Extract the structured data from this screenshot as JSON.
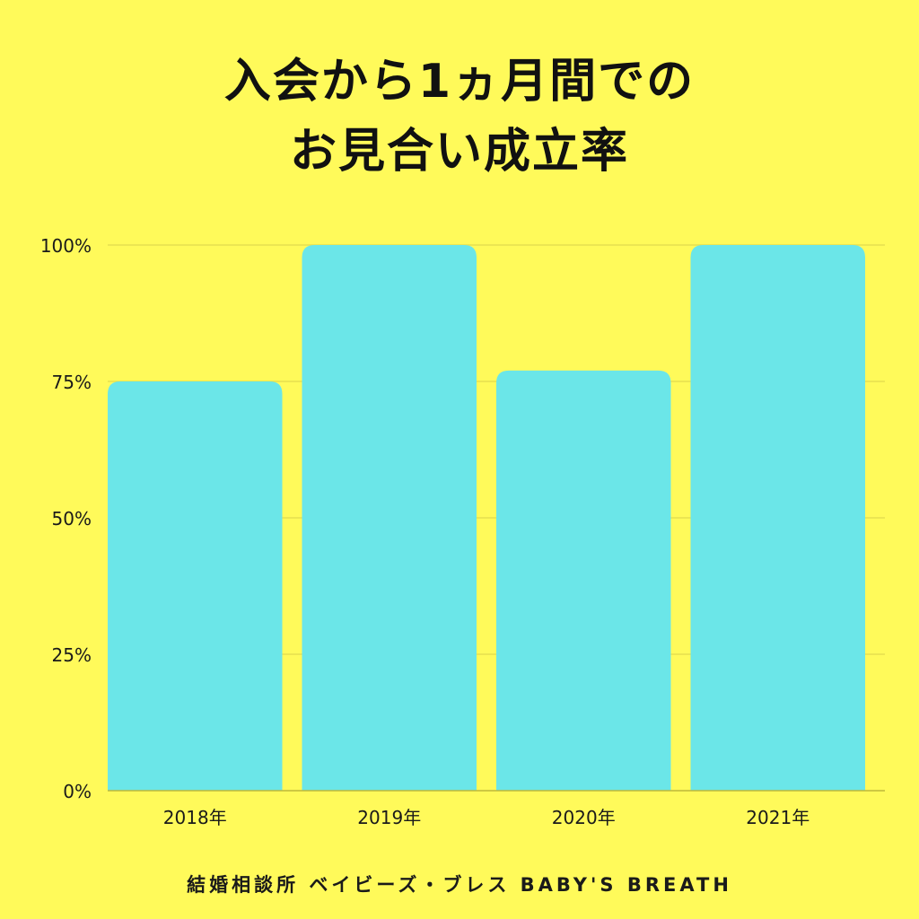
{
  "title_line1": "入会から1ヵ月間での",
  "title_line2": "お見合い成立率",
  "footer": "結婚相談所 ベイビーズ・ブレス BABY'S BREATH",
  "colors": {
    "background": "#FFFA5A",
    "bar": "#6BE6E8",
    "grid": "#E5E04F",
    "axis": "#BDB83A"
  },
  "chart_data": {
    "type": "bar",
    "categories": [
      "2018年",
      "2019年",
      "2020年",
      "2021年"
    ],
    "values": [
      75,
      100,
      77,
      100
    ],
    "ylim": [
      0,
      100
    ],
    "yticks": [
      0,
      25,
      50,
      75,
      100
    ],
    "ytick_labels": [
      "0%",
      "25%",
      "50%",
      "75%",
      "100%"
    ],
    "grid": true,
    "legend": "none"
  }
}
